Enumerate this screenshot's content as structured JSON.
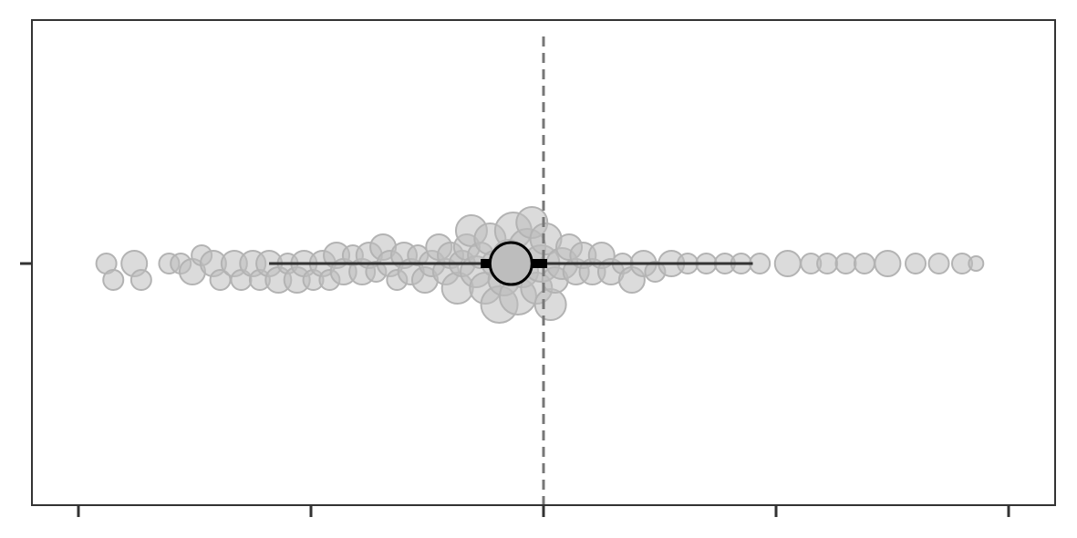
{
  "chart_data": {
    "type": "scatter",
    "subtype": "beeswarm-forest",
    "title": "",
    "xlabel": "",
    "ylabel": "",
    "xlim": [
      -2.0,
      2.2
    ],
    "x_ticks": [
      -2,
      -1,
      0,
      1,
      2
    ],
    "tick_labels_visible": false,
    "reference_line_x": 0,
    "summary": {
      "estimate": -0.14,
      "ci_inner": [
        -0.27,
        0.0
      ],
      "ci_outer": [
        -1.18,
        0.9
      ]
    },
    "points_x": [
      -1.88,
      -1.85,
      -1.76,
      -1.73,
      -1.61,
      -1.56,
      -1.51,
      -1.47,
      -1.42,
      -1.39,
      -1.33,
      -1.3,
      -1.25,
      -1.22,
      -1.18,
      -1.14,
      -1.1,
      -1.06,
      -1.03,
      -0.99,
      -0.95,
      -0.92,
      -0.89,
      -0.86,
      -0.82,
      -0.78,
      -0.75,
      -0.72,
      -0.69,
      -0.66,
      -0.63,
      -0.6,
      -0.57,
      -0.54,
      -0.51,
      -0.48,
      -0.45,
      -0.42,
      -0.4,
      -0.37,
      -0.35,
      -0.33,
      -0.31,
      -0.29,
      -0.27,
      -0.25,
      -0.23,
      -0.21,
      -0.19,
      -0.17,
      -0.15,
      -0.13,
      -0.11,
      -0.09,
      -0.07,
      -0.05,
      -0.03,
      -0.01,
      0.01,
      0.03,
      0.05,
      0.08,
      0.11,
      0.14,
      0.17,
      0.21,
      0.25,
      0.29,
      0.34,
      0.38,
      0.43,
      0.48,
      0.55,
      0.62,
      0.7,
      0.78,
      0.85,
      0.93,
      1.05,
      1.15,
      1.22,
      1.3,
      1.38,
      1.48,
      1.6,
      1.7,
      1.8,
      1.86
    ],
    "points_w": [
      2,
      2,
      3,
      2,
      2,
      2,
      3,
      2,
      3,
      2,
      3,
      2,
      3,
      2,
      3,
      3,
      2,
      3,
      3,
      2,
      3,
      2,
      3,
      3,
      2,
      3,
      3,
      2,
      3,
      3,
      2,
      3,
      3,
      2,
      3,
      3,
      3,
      3,
      3,
      4,
      3,
      3,
      4,
      4,
      3,
      4,
      4,
      3,
      5,
      4,
      4,
      5,
      5,
      4,
      5,
      4,
      4,
      5,
      4,
      4,
      3,
      4,
      3,
      3,
      3,
      3,
      3,
      3,
      2,
      3,
      3,
      2,
      3,
      2,
      2,
      2,
      2,
      2,
      3,
      2,
      2,
      2,
      2,
      3,
      2,
      2,
      2,
      1
    ],
    "colors": {
      "points_fill": "#bdbdbd",
      "points_stroke": "#b3b3b3",
      "ci_line": "#333333",
      "reference_line": "#777777",
      "frame": "#333333"
    }
  }
}
